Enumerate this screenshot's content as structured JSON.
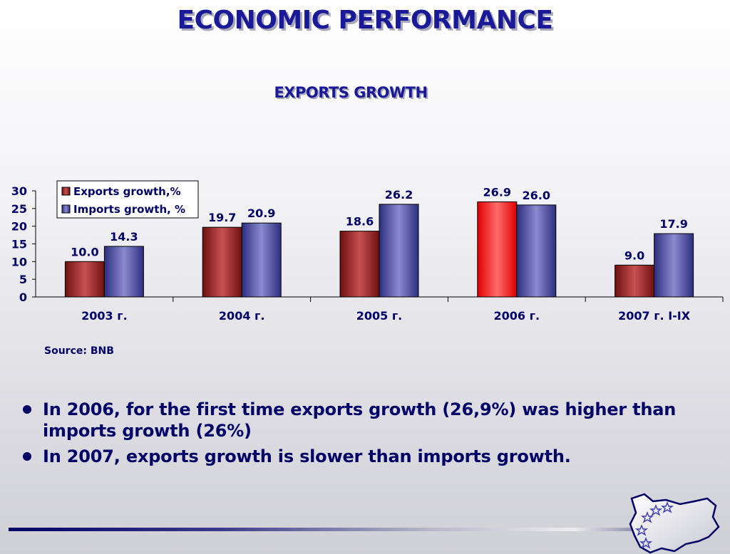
{
  "slide": {
    "title": "ECONOMIC PERFORMANCE",
    "subtitle": "EXPORTS GROWTH",
    "source": "Source: BNB",
    "bullets": [
      "In 2006, for the first time exports growth (26,9%) was higher than imports growth (26%)",
      "In 2007, exports growth is slower than imports growth."
    ],
    "logo_icon": "bulgaria-map-eu-stars-icon"
  },
  "chart_data": {
    "type": "bar",
    "categories": [
      "2003 г.",
      "2004 г.",
      "2005 г.",
      "2006 г.",
      "2007 г. I-IX"
    ],
    "series": [
      {
        "name": "Exports growth,%",
        "values": [
          10.0,
          19.7,
          18.6,
          26.9,
          9.0
        ],
        "color": "#8b1a1a",
        "highlight_color": "#ff1a1a",
        "highlight_index": 3
      },
      {
        "name": "Imports growth, %",
        "values": [
          14.3,
          20.9,
          26.2,
          26.0,
          17.9
        ],
        "color": "#4a4aa0"
      }
    ],
    "data_labels": {
      "Exports growth,%": [
        "10.0",
        "19.7",
        "18.6",
        "26.9",
        "9.0"
      ],
      "Imports growth, %": [
        "14.3",
        "20.9",
        "26.2",
        "26.0",
        "17.9"
      ]
    },
    "yticks": [
      "0",
      "5",
      "10",
      "15",
      "20",
      "25",
      "30"
    ],
    "ylim": [
      0,
      30
    ],
    "grid": false,
    "legend": "top-left"
  }
}
